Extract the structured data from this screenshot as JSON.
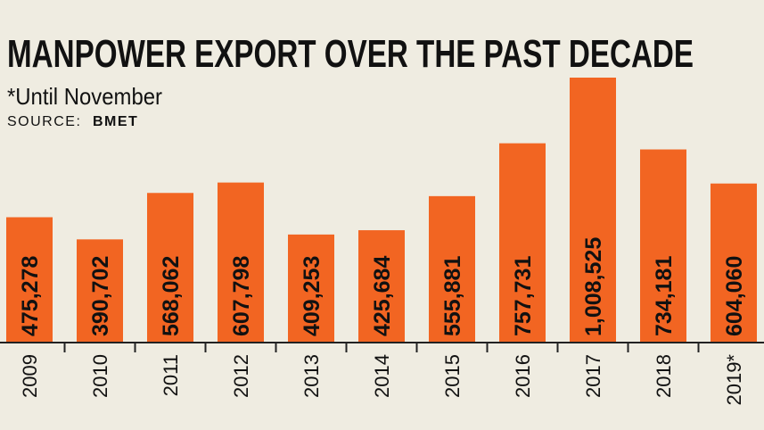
{
  "chart_data": {
    "type": "bar",
    "title": "MANPOWER EXPORT OVER THE PAST DECADE",
    "subtitle": "*Until November",
    "source_label": "SOURCE:",
    "source": "BMET",
    "categories": [
      "2009",
      "2010",
      "2011",
      "2012",
      "2013",
      "2014",
      "2015",
      "2016",
      "2017",
      "2018",
      "2019*"
    ],
    "values": [
      475278,
      390702,
      568062,
      607798,
      409253,
      425684,
      555881,
      757731,
      1008525,
      734181,
      604060
    ],
    "value_labels": [
      "475,278",
      "390,702",
      "568,062",
      "607,798",
      "409,253",
      "425,684",
      "555,881",
      "757,731",
      "1,008,525",
      "734,181",
      "604,060"
    ],
    "color": "#f26522"
  }
}
